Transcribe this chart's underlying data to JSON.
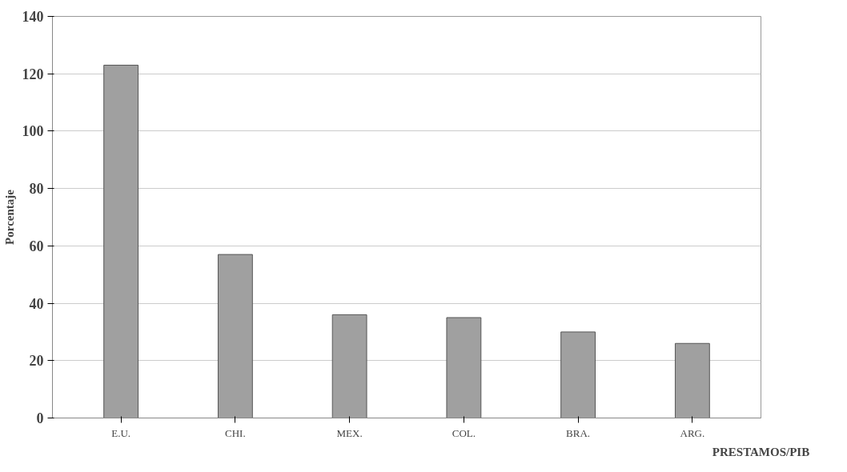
{
  "chart_data": {
    "type": "bar",
    "categories": [
      "E.U.",
      "CHI.",
      "MEX.",
      "COL.",
      "BRA.",
      "ARG."
    ],
    "values": [
      123,
      57,
      36,
      35,
      30,
      26
    ],
    "color": "#a0a0a0",
    "xlabel": "PRESTAMOS/PIB",
    "ylabel": "Porcentaje",
    "ylim": [
      0,
      140
    ],
    "yticks": [
      0,
      20,
      40,
      60,
      80,
      100,
      120,
      140
    ],
    "grid": "y"
  }
}
